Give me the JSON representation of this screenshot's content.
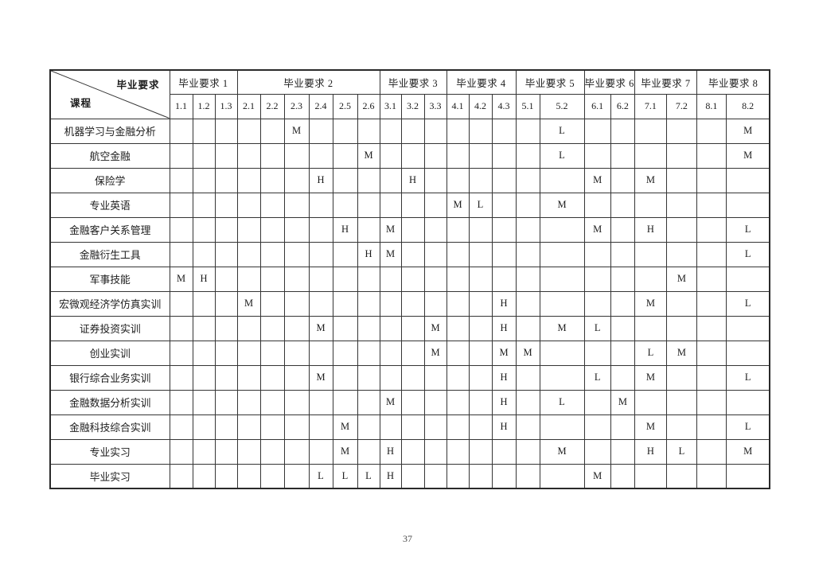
{
  "page": {
    "number": "37"
  },
  "table": {
    "corner": {
      "top_label": "毕业要求",
      "bottom_label": "课程"
    },
    "groups": [
      {
        "label": "毕业要求 1",
        "cols": [
          "1.1",
          "1.2",
          "1.3"
        ]
      },
      {
        "label": "毕业要求 2",
        "cols": [
          "2.1",
          "2.2",
          "2.3",
          "2.4",
          "2.5",
          "2.6"
        ]
      },
      {
        "label": "毕业要求 3",
        "cols": [
          "3.1",
          "3.2",
          "3.3"
        ]
      },
      {
        "label": "毕业要求 4",
        "cols": [
          "4.1",
          "4.2",
          "4.3"
        ]
      },
      {
        "label": "毕业要求 5",
        "cols": [
          "5.1",
          "5.2"
        ]
      },
      {
        "label": "毕业要求 6",
        "cols": [
          "6.1",
          "6.2"
        ]
      },
      {
        "label": "毕业要求 7",
        "cols": [
          "7.1",
          "7.2"
        ]
      },
      {
        "label": "毕业要求 8",
        "cols": [
          "8.1",
          "8.2"
        ]
      }
    ],
    "rows": [
      {
        "course": "机器学习与金融分析",
        "marks": {
          "2.3": "M",
          "5.2": "L",
          "8.2": "M"
        }
      },
      {
        "course": "航空金融",
        "marks": {
          "2.6": "M",
          "5.2": "L",
          "8.2": "M"
        }
      },
      {
        "course": "保险学",
        "marks": {
          "2.4": "H",
          "3.2": "H",
          "6.1": "M",
          "7.1": "M"
        }
      },
      {
        "course": "专业英语",
        "marks": {
          "4.1": "M",
          "4.2": "L",
          "5.2": "M"
        }
      },
      {
        "course": "金融客户关系管理",
        "marks": {
          "2.5": "H",
          "3.1": "M",
          "6.1": "M",
          "7.1": "H",
          "8.2": "L"
        }
      },
      {
        "course": "金融衍生工具",
        "marks": {
          "2.6": "H",
          "3.1": "M",
          "8.2": "L"
        }
      },
      {
        "course": "军事技能",
        "marks": {
          "1.1": "M",
          "1.2": "H",
          "7.2": "M"
        }
      },
      {
        "course": "宏微观经济学仿真实训",
        "marks": {
          "2.1": "M",
          "4.3": "H",
          "7.1": "M",
          "8.2": "L"
        }
      },
      {
        "course": "证券投资实训",
        "marks": {
          "2.4": "M",
          "3.3": "M",
          "4.3": "H",
          "5.2": "M",
          "6.1": "L"
        }
      },
      {
        "course": "创业实训",
        "marks": {
          "3.3": "M",
          "4.3": "M",
          "5.1": "M",
          "7.1": "L",
          "7.2": "M"
        }
      },
      {
        "course": "银行综合业务实训",
        "marks": {
          "2.4": "M",
          "4.3": "H",
          "6.1": "L",
          "7.1": "M",
          "8.2": "L"
        }
      },
      {
        "course": "金融数据分析实训",
        "marks": {
          "3.1": "M",
          "4.3": "H",
          "5.2": "L",
          "6.2": "M"
        }
      },
      {
        "course": "金融科技综合实训",
        "marks": {
          "2.5": "M",
          "4.3": "H",
          "7.1": "M",
          "8.2": "L"
        }
      },
      {
        "course": "专业实习",
        "marks": {
          "2.5": "M",
          "3.1": "H",
          "5.2": "M",
          "7.1": "H",
          "7.2": "L",
          "8.2": "M"
        }
      },
      {
        "course": "毕业实习",
        "marks": {
          "2.4": "L",
          "2.5": "L",
          "2.6": "L",
          "3.1": "H",
          "6.1": "M"
        }
      }
    ]
  }
}
